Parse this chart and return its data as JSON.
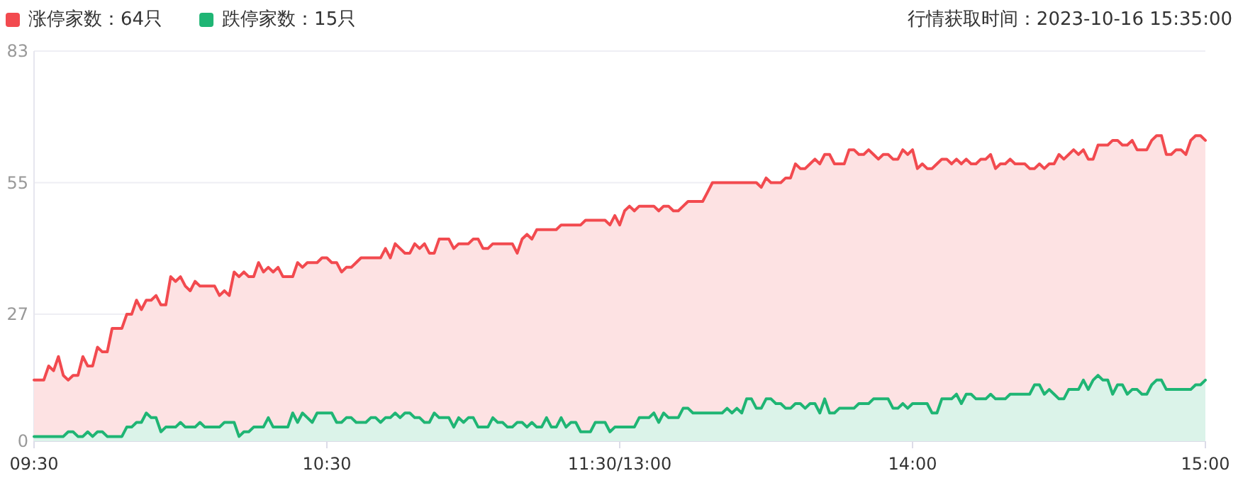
{
  "chart_data": {
    "type": "area",
    "title": "行情获取时间：2023-10-16 15:35:00",
    "categories": [
      "09:30",
      null,
      null,
      null,
      null,
      null,
      null,
      null,
      null,
      null,
      null,
      null,
      null,
      null,
      null,
      null,
      null,
      null,
      null,
      null,
      null,
      null,
      null,
      null,
      null,
      null,
      null,
      null,
      null,
      null,
      null,
      null,
      null,
      null,
      null,
      null,
      null,
      null,
      null,
      null,
      null,
      null,
      null,
      null,
      null,
      null,
      null,
      null,
      null,
      null,
      null,
      null,
      null,
      null,
      null,
      null,
      null,
      null,
      null,
      null,
      "10:30",
      null,
      null,
      null,
      null,
      null,
      null,
      null,
      null,
      null,
      null,
      null,
      null,
      null,
      null,
      null,
      null,
      null,
      null,
      null,
      null,
      null,
      null,
      null,
      null,
      null,
      null,
      null,
      null,
      null,
      null,
      null,
      null,
      null,
      null,
      null,
      null,
      null,
      null,
      null,
      null,
      null,
      null,
      null,
      null,
      null,
      null,
      null,
      null,
      null,
      null,
      null,
      null,
      null,
      null,
      null,
      null,
      null,
      null,
      null,
      "11:30/13:00",
      null,
      null,
      null,
      null,
      null,
      null,
      null,
      null,
      null,
      null,
      null,
      null,
      null,
      null,
      null,
      null,
      null,
      null,
      null,
      null,
      null,
      null,
      null,
      null,
      null,
      null,
      null,
      null,
      null,
      null,
      null,
      null,
      null,
      null,
      null,
      null,
      null,
      null,
      null,
      null,
      null,
      null,
      null,
      null,
      null,
      null,
      null,
      null,
      null,
      null,
      null,
      null,
      null,
      null,
      null,
      null,
      null,
      null,
      null,
      "14:00",
      null,
      null,
      null,
      null,
      null,
      null,
      null,
      null,
      null,
      null,
      null,
      null,
      null,
      null,
      null,
      null,
      null,
      null,
      null,
      null,
      null,
      null,
      null,
      null,
      null,
      null,
      null,
      null,
      null,
      null,
      null,
      null,
      null,
      null,
      null,
      null,
      null,
      null,
      null,
      null,
      null,
      null,
      null,
      null,
      null,
      null,
      null,
      null,
      null,
      null,
      null,
      null,
      null,
      null,
      null,
      null,
      null,
      null,
      null,
      "15:00"
    ],
    "ylim": [
      0,
      83
    ],
    "yticks": [
      0,
      27,
      55,
      83
    ],
    "grid": "y",
    "legend": "top left",
    "marker": "none",
    "line_style": "solid",
    "series": [
      {
        "name": "涨停家数：64只",
        "color": "#f24a4f",
        "values": [
          13,
          13,
          13,
          16,
          15,
          18,
          14,
          13,
          14,
          14,
          18,
          16,
          16,
          20,
          19,
          19,
          24,
          24,
          24,
          27,
          27,
          30,
          28,
          30,
          30,
          31,
          29,
          29,
          35,
          34,
          35,
          33,
          32,
          34,
          33,
          33,
          33,
          33,
          31,
          32,
          31,
          36,
          35,
          36,
          35,
          35,
          38,
          36,
          37,
          36,
          37,
          35,
          35,
          35,
          38,
          37,
          38,
          38,
          38,
          39,
          39,
          38,
          38,
          36,
          37,
          37,
          38,
          39,
          39,
          39,
          39,
          39,
          41,
          39,
          42,
          41,
          40,
          40,
          42,
          41,
          42,
          40,
          40,
          43,
          43,
          43,
          41,
          42,
          42,
          42,
          43,
          43,
          41,
          41,
          42,
          42,
          42,
          42,
          42,
          40,
          43,
          44,
          43,
          45,
          45,
          45,
          45,
          45,
          46,
          46,
          46,
          46,
          46,
          47,
          47,
          47,
          47,
          47,
          46,
          48,
          46,
          49,
          50,
          49,
          50,
          50,
          50,
          50,
          49,
          50,
          50,
          49,
          49,
          50,
          51,
          51,
          51,
          51,
          53,
          55,
          55,
          55,
          55,
          55,
          55,
          55,
          55,
          55,
          55,
          54,
          56,
          55,
          55,
          55,
          56,
          56,
          59,
          58,
          58,
          59,
          60,
          59,
          61,
          61,
          59,
          59,
          59,
          62,
          62,
          61,
          61,
          62,
          61,
          60,
          61,
          61,
          60,
          60,
          62,
          61,
          62,
          58,
          59,
          58,
          58,
          59,
          60,
          60,
          59,
          60,
          59,
          60,
          59,
          59,
          60,
          60,
          61,
          58,
          59,
          59,
          60,
          59,
          59,
          59,
          58,
          58,
          59,
          58,
          59,
          59,
          61,
          60,
          61,
          62,
          61,
          62,
          60,
          60,
          63,
          63,
          63,
          64,
          64,
          63,
          63,
          64,
          62,
          62,
          62,
          64,
          65,
          65,
          61,
          61,
          62,
          62,
          61,
          64,
          65,
          65,
          64
        ]
      },
      {
        "name": "跌停家数：15只",
        "color": "#1fb574",
        "values": [
          1,
          1,
          1,
          1,
          1,
          1,
          1,
          2,
          2,
          1,
          1,
          2,
          1,
          2,
          2,
          1,
          1,
          1,
          1,
          3,
          3,
          4,
          4,
          6,
          5,
          5,
          2,
          3,
          3,
          3,
          4,
          3,
          3,
          3,
          4,
          3,
          3,
          3,
          3,
          4,
          4,
          4,
          1,
          2,
          2,
          3,
          3,
          3,
          5,
          3,
          3,
          3,
          3,
          6,
          4,
          6,
          5,
          4,
          6,
          6,
          6,
          6,
          4,
          4,
          5,
          5,
          4,
          4,
          4,
          5,
          5,
          4,
          5,
          5,
          6,
          5,
          6,
          6,
          5,
          5,
          4,
          4,
          6,
          5,
          5,
          5,
          3,
          5,
          4,
          5,
          5,
          3,
          3,
          3,
          5,
          4,
          4,
          3,
          3,
          4,
          4,
          3,
          4,
          3,
          3,
          5,
          3,
          3,
          5,
          3,
          4,
          4,
          2,
          2,
          2,
          4,
          4,
          4,
          2,
          3,
          3,
          3,
          3,
          3,
          5,
          5,
          5,
          6,
          4,
          6,
          5,
          5,
          5,
          7,
          7,
          6,
          6,
          6,
          6,
          6,
          6,
          6,
          7,
          6,
          7,
          6,
          9,
          9,
          7,
          7,
          9,
          9,
          8,
          8,
          7,
          7,
          8,
          8,
          7,
          8,
          8,
          6,
          9,
          6,
          6,
          7,
          7,
          7,
          7,
          8,
          8,
          8,
          9,
          9,
          9,
          9,
          7,
          7,
          8,
          7,
          8,
          8,
          8,
          8,
          6,
          6,
          9,
          9,
          9,
          10,
          8,
          10,
          10,
          9,
          9,
          9,
          10,
          9,
          9,
          9,
          10,
          10,
          10,
          10,
          10,
          12,
          12,
          10,
          11,
          10,
          9,
          9,
          11,
          11,
          11,
          13,
          11,
          13,
          14,
          13,
          13,
          10,
          12,
          12,
          10,
          11,
          11,
          10,
          10,
          12,
          13,
          13,
          11,
          11,
          11,
          11,
          11,
          11,
          12,
          12,
          13
        ]
      }
    ]
  }
}
